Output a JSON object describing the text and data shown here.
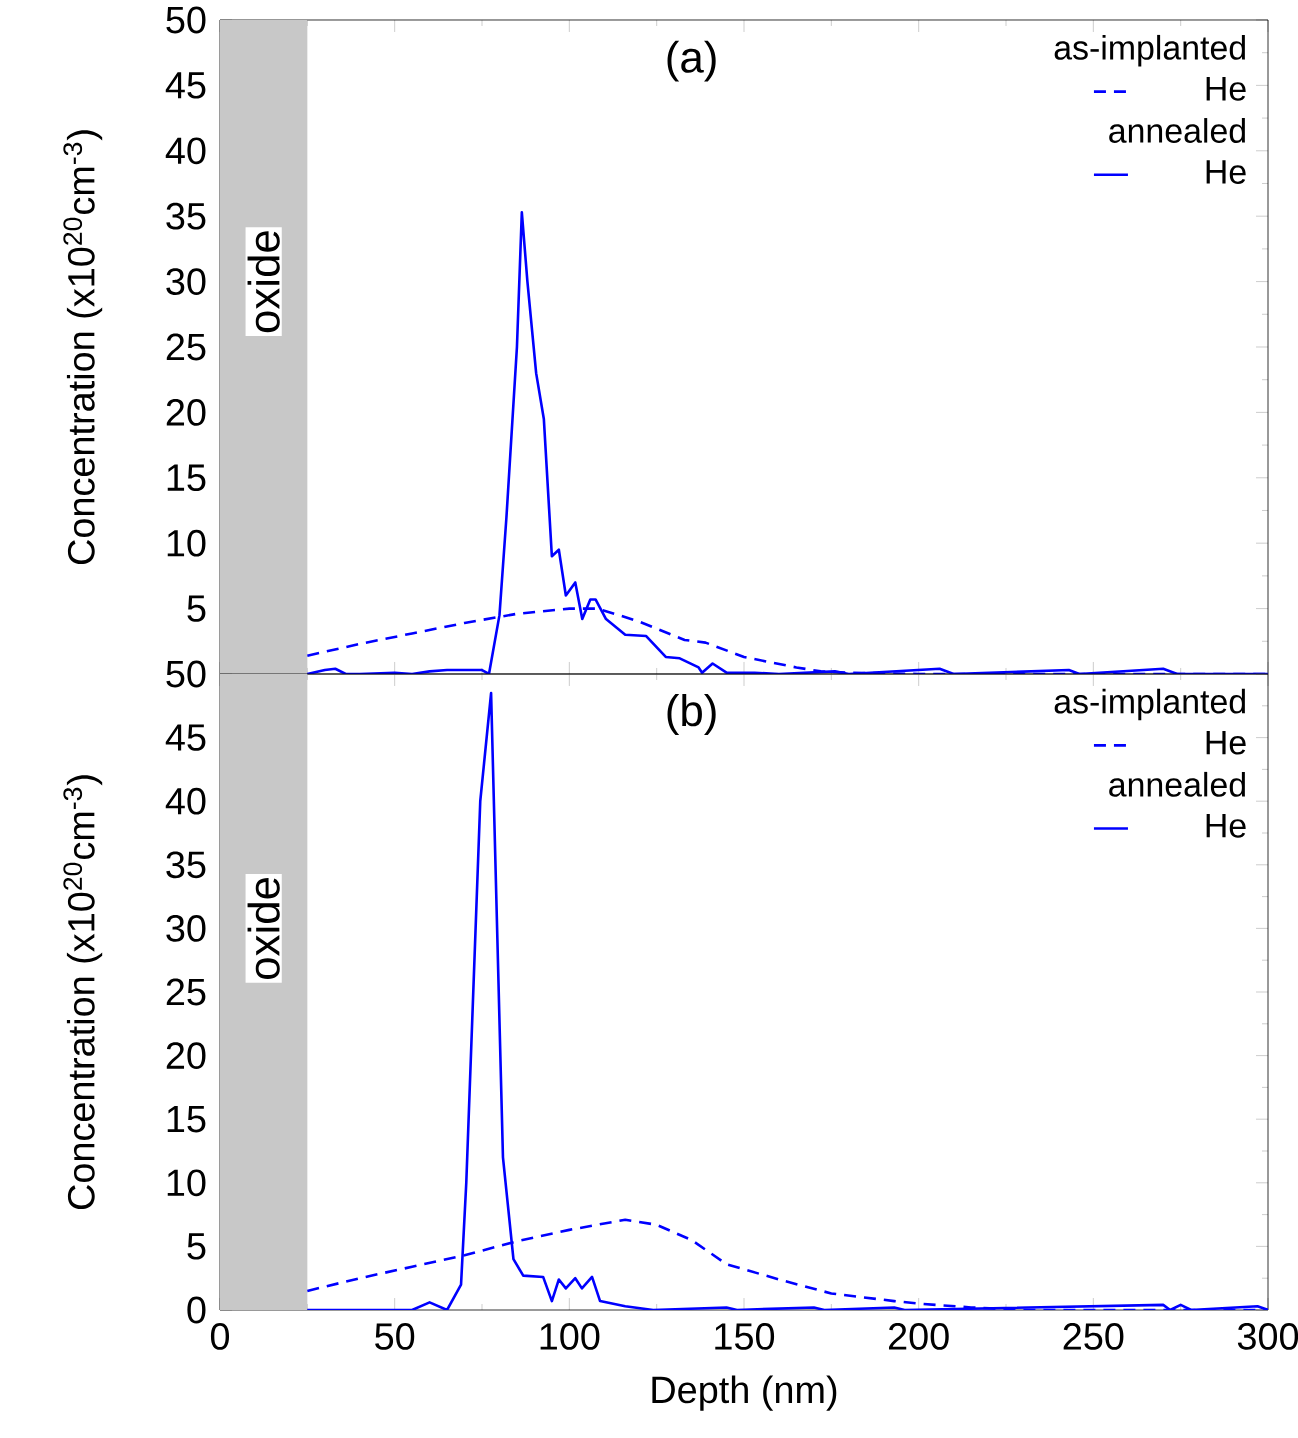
{
  "chart_data": [
    {
      "type": "line",
      "title": "(a)",
      "ylabel": "Concentration (x10$^{20}$cm$^{-3}$)",
      "xlim": [
        0,
        300
      ],
      "xticks": [
        0,
        50,
        100,
        150,
        200,
        250,
        300
      ],
      "ylim": [
        0,
        50
      ],
      "yticks": [
        {
          "value": 0,
          "label": null
        },
        5,
        10,
        15,
        20,
        25,
        30,
        35,
        40,
        45,
        50
      ],
      "tick_labels": "y",
      "legend": "top right",
      "annotations": [
        "as-implanted",
        "annealed"
      ],
      "bands": [
        {
          "axis": "x",
          "from": 0,
          "to": 25,
          "label": "oxide",
          "color": "#c8c8c8"
        }
      ],
      "series": [
        {
          "name": "He",
          "color": "#0000ff",
          "line_style": "dashed",
          "x": [
            25,
            40,
            55,
            70,
            85,
            100,
            108,
            113,
            120,
            133,
            139,
            150,
            165,
            172,
            180,
            200,
            300
          ],
          "values": [
            1.4,
            2.3,
            3.1,
            3.9,
            4.6,
            5.0,
            5.0,
            4.6,
            4.0,
            2.6,
            2.4,
            1.3,
            0.5,
            0.2,
            0.1,
            0,
            0
          ]
        },
        {
          "name": "He",
          "color": "#0000ff",
          "line_style": "solid",
          "x": [
            25,
            30,
            33,
            36,
            40,
            50,
            55,
            60,
            65,
            70,
            75,
            77,
            80,
            82,
            85,
            86.4,
            88,
            90.5,
            92.7,
            95,
            97,
            99,
            101.7,
            103.7,
            106,
            107.5,
            110.5,
            116,
            122,
            127.6,
            131.6,
            137,
            138,
            141,
            145,
            153,
            160,
            176,
            180,
            206,
            210,
            243,
            246,
            270,
            274,
            300
          ],
          "values": [
            0,
            0.3,
            0.4,
            0,
            0,
            0.1,
            0,
            0.2,
            0.3,
            0.3,
            0.3,
            0,
            4.5,
            12,
            25,
            35.3,
            30,
            23,
            19.5,
            9,
            9.5,
            6,
            7,
            4.2,
            5.7,
            5.7,
            4.2,
            3,
            2.9,
            1.3,
            1.2,
            0.5,
            0.1,
            0.8,
            0.1,
            0.1,
            0,
            0.2,
            0,
            0.4,
            0,
            0.3,
            0,
            0.4,
            0,
            0
          ]
        }
      ]
    },
    {
      "type": "line",
      "title": "(b)",
      "xlabel": "Depth (nm)",
      "ylabel": "Concentration (x10$^{20}$cm$^{-3}$)",
      "xlim": [
        0,
        300
      ],
      "xticks": [
        0,
        50,
        100,
        150,
        200,
        250,
        300
      ],
      "ylim": [
        0,
        50
      ],
      "yticks": [
        0,
        5,
        10,
        15,
        20,
        25,
        30,
        35,
        40,
        45,
        50
      ],
      "legend": "top right",
      "annotations": [
        "as-implanted",
        "annealed"
      ],
      "bands": [
        {
          "axis": "x",
          "from": 0,
          "to": 25,
          "label": "oxide",
          "color": "#c8c8c8"
        }
      ],
      "series": [
        {
          "name": "He",
          "color": "#0000ff",
          "line_style": "dashed",
          "x": [
            25,
            40,
            55,
            70,
            85,
            100,
            110,
            116,
            125,
            135,
            145,
            160,
            175,
            193,
            200,
            215,
            230,
            300
          ],
          "values": [
            1.5,
            2.5,
            3.4,
            4.3,
            5.4,
            6.3,
            6.8,
            7.1,
            6.7,
            5.5,
            3.6,
            2.4,
            1.3,
            0.7,
            0.5,
            0.2,
            0,
            0
          ]
        },
        {
          "name": "He",
          "color": "#0000ff",
          "line_style": "solid",
          "x": [
            25,
            40,
            55,
            60,
            65,
            69,
            70.5,
            74.5,
            77.6,
            81,
            84,
            86.8,
            92.5,
            95,
            97,
            99,
            101.7,
            103.6,
            106.5,
            108.8,
            116,
            124,
            145,
            148,
            170,
            173,
            193,
            196,
            270,
            272,
            275,
            278,
            297,
            300
          ],
          "values": [
            0,
            0,
            0,
            0.6,
            0,
            2,
            10,
            40,
            48.5,
            12,
            4,
            2.7,
            2.6,
            0.7,
            2.4,
            1.7,
            2.5,
            1.7,
            2.6,
            0.7,
            0.3,
            0,
            0.2,
            0,
            0.2,
            0,
            0.2,
            0,
            0.4,
            0,
            0.4,
            0,
            0.3,
            0
          ]
        }
      ]
    }
  ]
}
